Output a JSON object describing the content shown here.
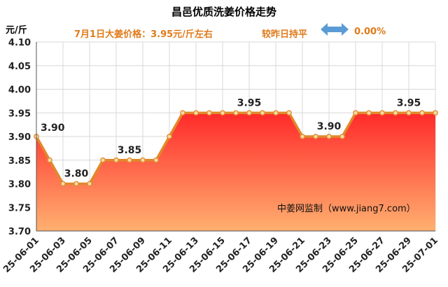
{
  "chart_data": {
    "type": "area",
    "title": "昌邑优质洗姜价格走势",
    "unit_label": "元/斤",
    "subtitle_price": "7月1日大姜价格：3.95元/斤左右",
    "subtitle_change_label": "较昨日持平",
    "subtitle_change_value": "0.00%",
    "watermark": "中姜网监制（www.jiang7.com）",
    "ylim": [
      3.7,
      4.1
    ],
    "y_ticks": [
      "3.70",
      "3.75",
      "3.80",
      "3.85",
      "3.90",
      "3.95",
      "4.00",
      "4.05",
      "4.10"
    ],
    "x_tick_labels": [
      "25-06-01",
      "25-06-03",
      "25-06-05",
      "25-06-07",
      "25-06-09",
      "25-06-11",
      "25-06-13",
      "25-06-15",
      "25-06-17",
      "25-06-19",
      "25-06-21",
      "25-06-23",
      "25-06-25",
      "25-06-27",
      "25-06-29",
      "25-07-01"
    ],
    "x": [
      "25-06-01",
      "25-06-02",
      "25-06-03",
      "25-06-04",
      "25-06-05",
      "25-06-06",
      "25-06-07",
      "25-06-08",
      "25-06-09",
      "25-06-10",
      "25-06-11",
      "25-06-12",
      "25-06-13",
      "25-06-14",
      "25-06-15",
      "25-06-16",
      "25-06-17",
      "25-06-18",
      "25-06-19",
      "25-06-20",
      "25-06-21",
      "25-06-22",
      "25-06-23",
      "25-06-24",
      "25-06-25",
      "25-06-26",
      "25-06-27",
      "25-06-28",
      "25-06-29",
      "25-06-30",
      "25-07-01"
    ],
    "values": [
      3.9,
      3.85,
      3.8,
      3.8,
      3.8,
      3.85,
      3.85,
      3.85,
      3.85,
      3.85,
      3.9,
      3.95,
      3.95,
      3.95,
      3.95,
      3.95,
      3.95,
      3.95,
      3.95,
      3.95,
      3.9,
      3.9,
      3.9,
      3.9,
      3.95,
      3.95,
      3.95,
      3.95,
      3.95,
      3.95,
      3.95
    ],
    "data_labels": [
      {
        "index": 0,
        "text": "3.90"
      },
      {
        "index": 3,
        "text": "3.80"
      },
      {
        "index": 7,
        "text": "3.85"
      },
      {
        "index": 16,
        "text": "3.95"
      },
      {
        "index": 22,
        "text": "3.90"
      },
      {
        "index": 28,
        "text": "3.95"
      }
    ],
    "grid": true,
    "colors": {
      "line": "#e08a2a",
      "marker_fill": "#f5d9a8",
      "area_top": "#ff2a2a",
      "area_bottom": "#ffb070",
      "subtitle": "#e07a1a",
      "arrow": "#5b9bd5"
    },
    "icons": {
      "change_arrow": "double-arrow-icon"
    }
  }
}
